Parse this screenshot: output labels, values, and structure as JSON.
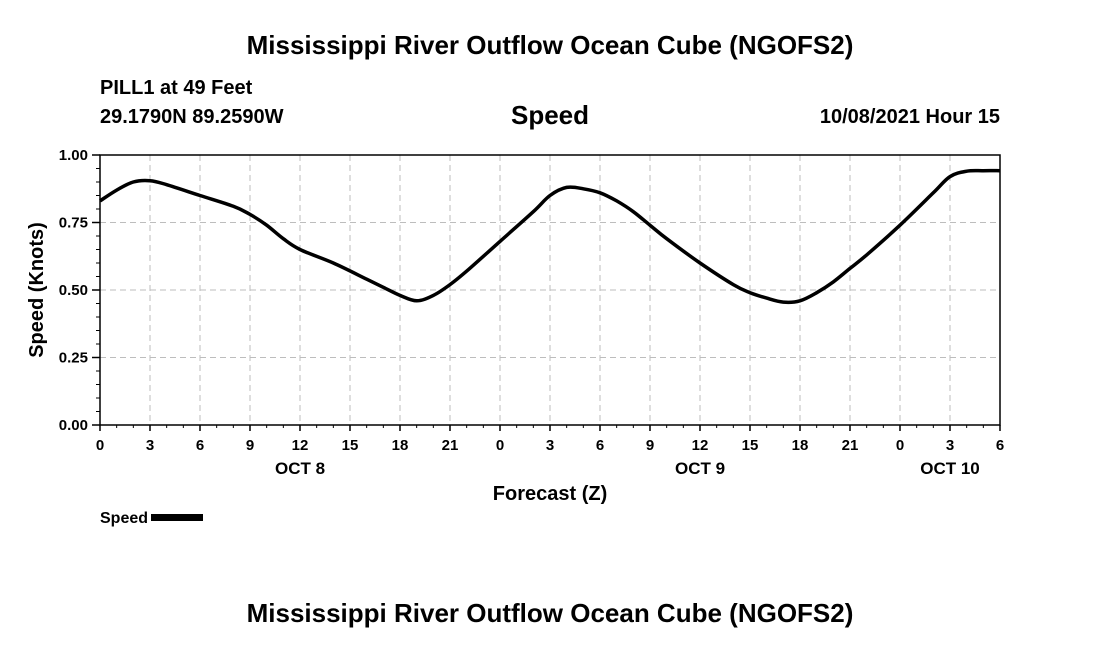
{
  "header": {
    "title": "Mississippi River Outflow Ocean Cube (NGOFS2)",
    "station": "PILL1 at 49 Feet",
    "coordinates": "29.1790N  89.2590W",
    "variable": "Speed",
    "datestamp": "10/08/2021 Hour 15"
  },
  "footer": {
    "title": "Mississippi River Outflow Ocean Cube (NGOFS2)"
  },
  "legend": {
    "label": "Speed",
    "color": "#000000"
  },
  "chart_data": {
    "type": "line",
    "title": "Speed",
    "xlabel": "Forecast (Z)",
    "ylabel": "Speed (Knots)",
    "xlim": [
      0,
      54
    ],
    "ylim": [
      0,
      1.0
    ],
    "x_ticks": [
      0,
      3,
      6,
      9,
      12,
      15,
      18,
      21,
      24,
      27,
      30,
      33,
      36,
      39,
      42,
      45,
      48,
      51,
      54
    ],
    "x_tick_labels": [
      "0",
      "3",
      "6",
      "9",
      "12",
      "15",
      "18",
      "21",
      "0",
      "3",
      "6",
      "9",
      "12",
      "15",
      "18",
      "21",
      "0",
      "3",
      "6"
    ],
    "y_ticks": [
      0,
      0.25,
      0.5,
      0.75,
      1.0
    ],
    "y_tick_labels": [
      "0.00",
      "0.25",
      "0.50",
      "0.75",
      "1.00"
    ],
    "day_labels": [
      {
        "x": 12,
        "label": "OCT 8"
      },
      {
        "x": 36,
        "label": "OCT 9"
      },
      {
        "x": 51,
        "label": "OCT 10"
      }
    ],
    "grid": true,
    "series": [
      {
        "name": "Speed",
        "color": "#000000",
        "x": [
          0,
          1,
          2,
          3,
          4,
          6,
          8,
          9,
          10,
          11,
          12,
          14,
          16,
          17,
          18,
          19,
          20,
          21,
          22,
          24,
          26,
          27,
          28,
          29,
          30,
          31,
          32,
          33,
          34,
          36,
          38,
          39,
          40,
          41,
          42,
          43,
          44,
          45,
          46,
          48,
          50,
          51,
          52,
          53,
          54
        ],
        "y": [
          0.83,
          0.87,
          0.9,
          0.905,
          0.89,
          0.85,
          0.81,
          0.78,
          0.74,
          0.69,
          0.65,
          0.6,
          0.54,
          0.51,
          0.48,
          0.46,
          0.48,
          0.52,
          0.57,
          0.68,
          0.79,
          0.85,
          0.88,
          0.875,
          0.86,
          0.83,
          0.79,
          0.74,
          0.69,
          0.6,
          0.52,
          0.49,
          0.47,
          0.455,
          0.46,
          0.49,
          0.53,
          0.58,
          0.63,
          0.74,
          0.86,
          0.92,
          0.94,
          0.942,
          0.942
        ]
      }
    ]
  }
}
